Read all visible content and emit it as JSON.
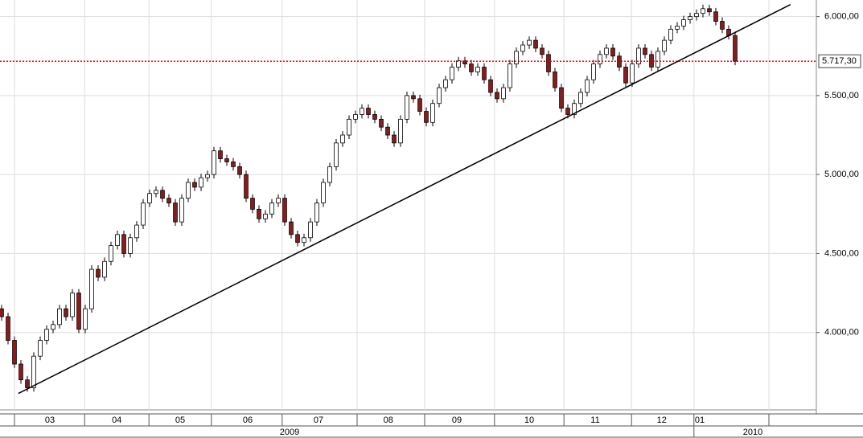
{
  "chart_data": {
    "type": "candlestick",
    "up_color": "#ffffff",
    "down_color": "#8b1a1a",
    "outline_color": "#000000",
    "grid": true,
    "xlim": [
      -0.25,
      126.625
    ],
    "ylim": [
      3510,
      6105
    ],
    "yticks": [
      {
        "value": 4000,
        "label": "4.000,00"
      },
      {
        "value": 4500,
        "label": "4.500,00"
      },
      {
        "value": 5000,
        "label": "5.000,00"
      },
      {
        "value": 5500,
        "label": "5.500,00"
      },
      {
        "value": 6000,
        "label": "6.000,00"
      }
    ],
    "xticks": [
      2,
      12.9,
      22.9,
      32.6,
      43.6,
      55.25,
      65.75,
      76.6,
      87.4,
      97.9,
      107.6,
      119.25
    ],
    "month_labels": [
      {
        "value": 7.5,
        "label": "03"
      },
      {
        "value": 17.9,
        "label": "04"
      },
      {
        "value": 27.75,
        "label": "05"
      },
      {
        "value": 38.25,
        "label": "06"
      },
      {
        "value": 49.25,
        "label": "07"
      },
      {
        "value": 60.1,
        "label": "08"
      },
      {
        "value": 70.75,
        "label": "09"
      },
      {
        "value": 82,
        "label": "10"
      },
      {
        "value": 92.25,
        "label": "11"
      },
      {
        "value": 102.6,
        "label": "12"
      },
      {
        "value": 108.5,
        "label": "01"
      }
    ],
    "year_labels": [
      {
        "value": 44.75,
        "label": "2009"
      },
      {
        "value": 116.75,
        "label": "2010"
      }
    ],
    "year_separator": 107.6,
    "reference_line": {
      "value": 5717.3,
      "label": "5.717,30",
      "color": "#cc0000"
    },
    "trendline": {
      "x": [
        2.6,
        122.6
      ],
      "y": [
        3614,
        6076
      ],
      "color": "#000000"
    },
    "open": [
      4150,
      4100,
      3950,
      3800,
      3700,
      3650,
      3850,
      3950,
      4020,
      4050,
      4150,
      4100,
      4250,
      4020,
      4150,
      4400,
      4350,
      4450,
      4550,
      4620,
      4500,
      4600,
      4680,
      4820,
      4880,
      4900,
      4850,
      4820,
      4700,
      4850,
      4950,
      4920,
      4980,
      5000,
      5150,
      5100,
      5080,
      5050,
      5000,
      4850,
      4780,
      4720,
      4750,
      4820,
      4850,
      4700,
      4620,
      4570,
      4600,
      4700,
      4820,
      4950,
      5050,
      5200,
      5250,
      5350,
      5380,
      5420,
      5380,
      5350,
      5300,
      5250,
      5200,
      5350,
      5500,
      5480,
      5400,
      5330,
      5450,
      5550,
      5600,
      5680,
      5720,
      5700,
      5650,
      5680,
      5600,
      5520,
      5480,
      5550,
      5700,
      5780,
      5820,
      5850,
      5800,
      5760,
      5650,
      5550,
      5420,
      5380,
      5450,
      5520,
      5600,
      5700,
      5760,
      5800,
      5750,
      5680,
      5580,
      5700,
      5800,
      5760,
      5680,
      5780,
      5850,
      5920,
      5940,
      5980,
      6000,
      6020,
      6050,
      6030,
      5970,
      5920,
      5880
    ],
    "close": [
      4100,
      3950,
      3800,
      3700,
      3650,
      3850,
      3950,
      4020,
      4050,
      4150,
      4100,
      4250,
      4020,
      4150,
      4400,
      4350,
      4450,
      4550,
      4620,
      4500,
      4600,
      4680,
      4820,
      4880,
      4900,
      4850,
      4820,
      4700,
      4850,
      4950,
      4920,
      4980,
      5000,
      5150,
      5100,
      5080,
      5050,
      5000,
      4850,
      4780,
      4720,
      4750,
      4820,
      4850,
      4700,
      4620,
      4570,
      4600,
      4700,
      4820,
      4950,
      5050,
      5200,
      5250,
      5350,
      5380,
      5420,
      5380,
      5350,
      5300,
      5250,
      5200,
      5350,
      5500,
      5480,
      5400,
      5330,
      5450,
      5550,
      5600,
      5680,
      5720,
      5700,
      5650,
      5680,
      5600,
      5520,
      5480,
      5550,
      5700,
      5780,
      5820,
      5850,
      5800,
      5760,
      5650,
      5550,
      5420,
      5380,
      5450,
      5520,
      5600,
      5700,
      5760,
      5800,
      5750,
      5680,
      5580,
      5700,
      5800,
      5760,
      5680,
      5780,
      5850,
      5920,
      5940,
      5980,
      6000,
      6020,
      6050,
      6030,
      5970,
      5920,
      5880,
      5717.3
    ],
    "high": [
      4175,
      4125,
      3975,
      3825,
      3725,
      3875,
      3975,
      4045,
      4075,
      4175,
      4175,
      4275,
      4275,
      4175,
      4425,
      4425,
      4475,
      4575,
      4645,
      4645,
      4625,
      4705,
      4845,
      4905,
      4925,
      4925,
      4875,
      4845,
      4875,
      4975,
      4975,
      5005,
      5025,
      5175,
      5175,
      5125,
      5105,
      5075,
      5025,
      4875,
      4805,
      4775,
      4845,
      4875,
      4875,
      4725,
      4645,
      4625,
      4725,
      4845,
      4975,
      5075,
      5225,
      5275,
      5375,
      5405,
      5445,
      5445,
      5405,
      5375,
      5325,
      5275,
      5375,
      5525,
      5525,
      5505,
      5425,
      5475,
      5575,
      5625,
      5705,
      5745,
      5745,
      5725,
      5705,
      5705,
      5625,
      5545,
      5575,
      5725,
      5805,
      5845,
      5875,
      5875,
      5825,
      5785,
      5675,
      5575,
      5445,
      5475,
      5545,
      5625,
      5725,
      5785,
      5825,
      5825,
      5775,
      5705,
      5725,
      5825,
      5825,
      5785,
      5805,
      5875,
      5945,
      5965,
      6005,
      6025,
      6045,
      6075,
      6075,
      6055,
      5995,
      5945,
      5905
    ],
    "low": [
      4075,
      3925,
      3775,
      3675,
      3625,
      3625,
      3825,
      3925,
      3995,
      4025,
      4075,
      4075,
      3995,
      3995,
      4125,
      4325,
      4325,
      4425,
      4525,
      4475,
      4475,
      4575,
      4655,
      4795,
      4855,
      4825,
      4795,
      4675,
      4675,
      4825,
      4895,
      4895,
      4955,
      4975,
      5075,
      5055,
      5025,
      4975,
      4825,
      4755,
      4695,
      4695,
      4725,
      4795,
      4675,
      4595,
      4545,
      4545,
      4575,
      4675,
      4795,
      4925,
      5025,
      5175,
      5225,
      5325,
      5355,
      5355,
      5325,
      5275,
      5225,
      5175,
      5175,
      5325,
      5455,
      5375,
      5305,
      5305,
      5425,
      5525,
      5575,
      5655,
      5675,
      5625,
      5625,
      5575,
      5495,
      5455,
      5455,
      5525,
      5675,
      5755,
      5795,
      5775,
      5735,
      5625,
      5525,
      5395,
      5355,
      5355,
      5425,
      5495,
      5575,
      5675,
      5735,
      5725,
      5655,
      5555,
      5555,
      5675,
      5735,
      5655,
      5655,
      5755,
      5825,
      5895,
      5915,
      5955,
      5975,
      5995,
      6005,
      5945,
      5895,
      5855,
      5692
    ]
  }
}
